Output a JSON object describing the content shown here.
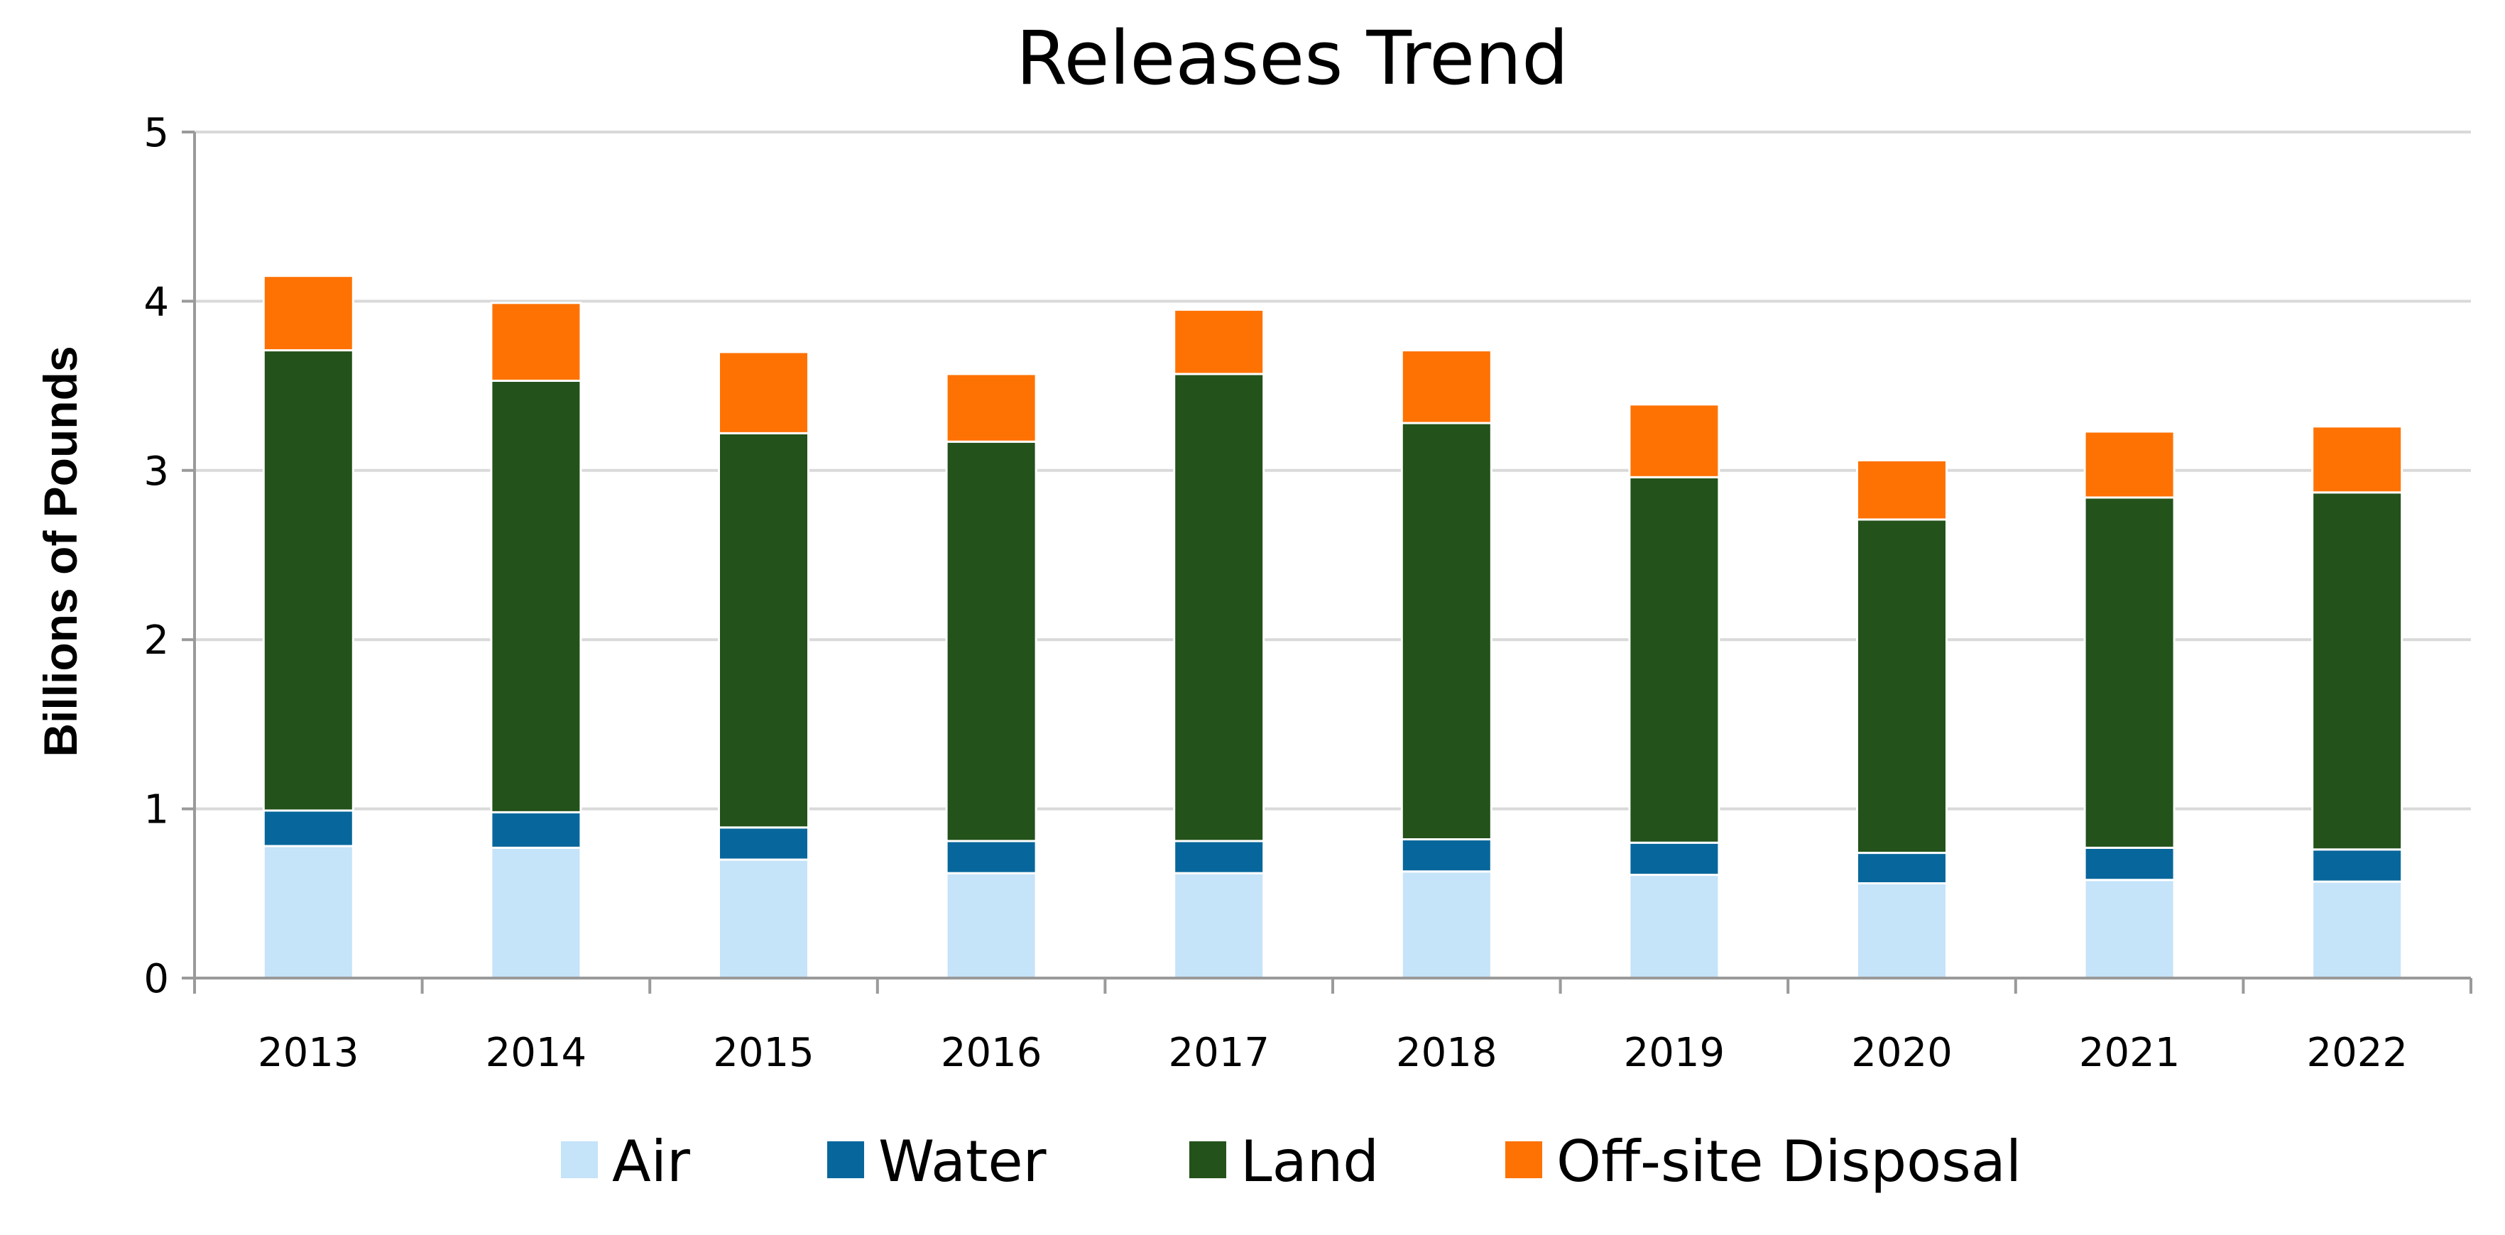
{
  "chart_data": {
    "type": "bar",
    "stacked": true,
    "title": "Releases Trend",
    "xlabel": "",
    "ylabel": "Billions of Pounds",
    "ylim": [
      0,
      5
    ],
    "yticks": [
      "0",
      "1",
      "2",
      "3",
      "4",
      "5"
    ],
    "grid": true,
    "legend_position": "bottom",
    "categories": [
      "2013",
      "2014",
      "2015",
      "2016",
      "2017",
      "2018",
      "2019",
      "2020",
      "2021",
      "2022"
    ],
    "series": [
      {
        "name": "Air",
        "color": "#c5e3f9",
        "values": [
          0.78,
          0.77,
          0.7,
          0.62,
          0.62,
          0.63,
          0.61,
          0.56,
          0.58,
          0.57
        ]
      },
      {
        "name": "Water",
        "color": "#07679c",
        "values": [
          0.21,
          0.21,
          0.19,
          0.19,
          0.19,
          0.19,
          0.19,
          0.18,
          0.19,
          0.19
        ]
      },
      {
        "name": "Land",
        "color": "#23521a",
        "values": [
          2.72,
          2.55,
          2.33,
          2.36,
          2.76,
          2.46,
          2.16,
          1.97,
          2.07,
          2.11
        ]
      },
      {
        "name": "Off-site Disposal",
        "color": "#fe7203",
        "values": [
          0.44,
          0.46,
          0.48,
          0.4,
          0.38,
          0.43,
          0.43,
          0.35,
          0.39,
          0.39
        ]
      }
    ]
  }
}
